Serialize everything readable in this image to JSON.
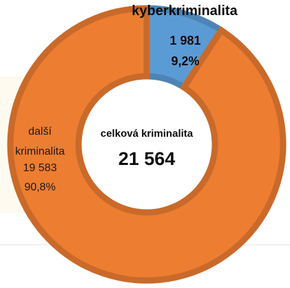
{
  "chart_data": {
    "type": "donut",
    "categories": [
      "kyberkriminalita",
      "další kriminalita"
    ],
    "values": [
      1981,
      19583
    ],
    "value_labels": [
      "1 981",
      "19 583"
    ],
    "percents": [
      9.2,
      90.8
    ],
    "percent_labels": [
      "9,2%",
      "90,8%"
    ],
    "colors": [
      "#5b9bd5",
      "#ed7d31"
    ],
    "center_title": "celková kriminalita",
    "total": {
      "value": 21564,
      "label": "21 564"
    }
  }
}
